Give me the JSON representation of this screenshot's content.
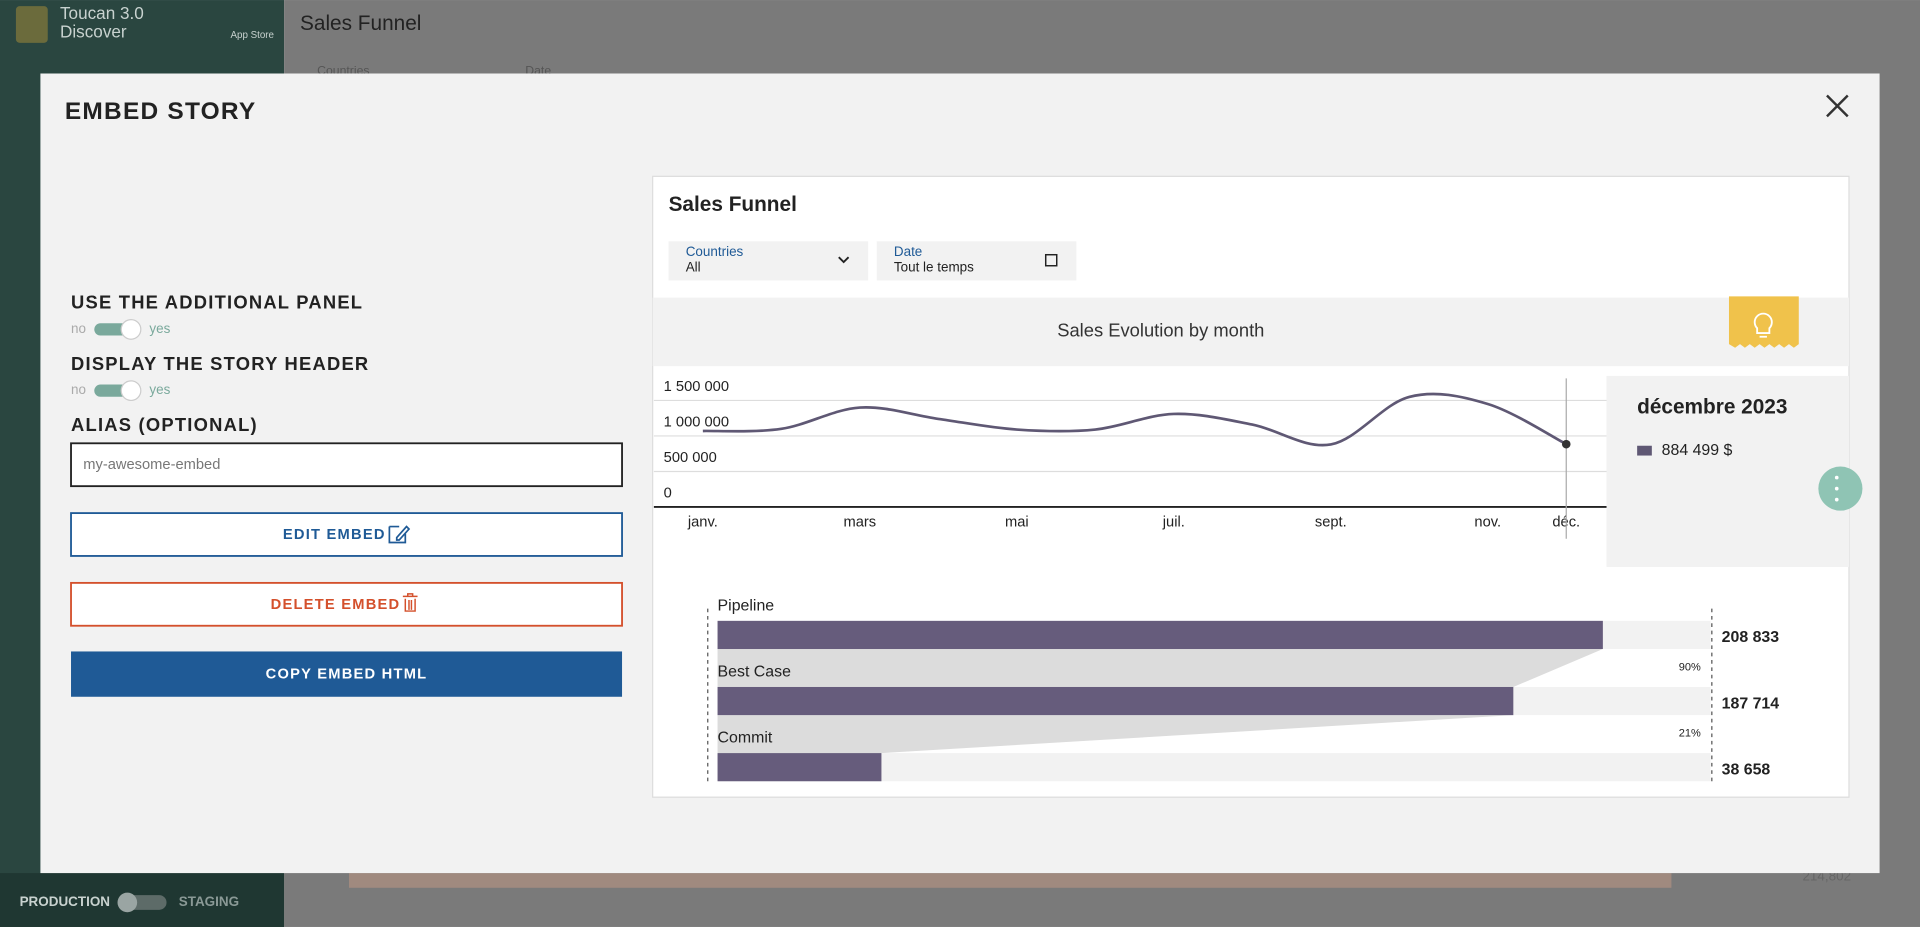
{
  "app": {
    "name_line1": "Toucan 3.0",
    "name_line2": "Discover",
    "app_store": "App Store"
  },
  "background": {
    "page_title": "Sales Funnel",
    "filter1": "Countries",
    "filter2": "Date",
    "env_production": "PRODUCTION",
    "env_staging": "STAGING",
    "partial_value": "214,802"
  },
  "modal": {
    "title": "EMBED STORY",
    "options": [
      {
        "label": "USE THE ADDITIONAL PANEL",
        "off": "no",
        "on": "yes",
        "enabled": true
      },
      {
        "label": "DISPLAY THE STORY HEADER",
        "off": "no",
        "on": "yes",
        "enabled": true
      }
    ],
    "alias_label": "ALIAS (OPTIONAL)",
    "alias_placeholder": "my-awesome-embed",
    "buttons": {
      "edit": "EDIT EMBED",
      "delete": "DELETE EMBED",
      "copy": "COPY EMBED HTML"
    }
  },
  "preview": {
    "title": "Sales Funnel",
    "filters": [
      {
        "label": "Countries",
        "value": "All"
      },
      {
        "label": "Date",
        "value": "Tout le temps"
      }
    ],
    "line_chart": {
      "type": "line",
      "title": "Sales Evolution by month",
      "categories": [
        "janv.",
        null,
        "mars",
        null,
        "mai",
        null,
        "juil.",
        null,
        "sept.",
        null,
        "nov.",
        "déc."
      ],
      "series": [
        {
          "color": "#5f5874",
          "values": [
            1070000,
            1100000,
            1400000,
            1240000,
            1090000,
            1090000,
            1310000,
            1160000,
            880000,
            1550000,
            1450000,
            884499
          ],
          "value_labels": [
            null,
            null,
            null,
            null,
            null,
            null,
            null,
            null,
            null,
            null,
            null,
            "884 499 $"
          ]
        }
      ],
      "ylim": [
        0,
        1800000
      ],
      "yticks": [
        0,
        {
          "value": 500000,
          "label": "500 000"
        },
        {
          "value": 1000000,
          "label": "1 000 000"
        },
        {
          "value": 1500000,
          "label": "1 500 000"
        }
      ],
      "grid": true,
      "tooltip_title": "décembre 2023"
    },
    "funnel": {
      "type": "funnel",
      "categories": [
        "Pipeline",
        "Best Case",
        "Commit"
      ],
      "values": [
        208833,
        187714,
        38658
      ],
      "value_labels": [
        "208 833",
        "187 714",
        "38 658"
      ],
      "conversion_rates": [
        90,
        21
      ],
      "conversion_labels": [
        "90%",
        "21%"
      ],
      "xlim": [
        0,
        234250
      ],
      "color": "#665c7c"
    }
  }
}
